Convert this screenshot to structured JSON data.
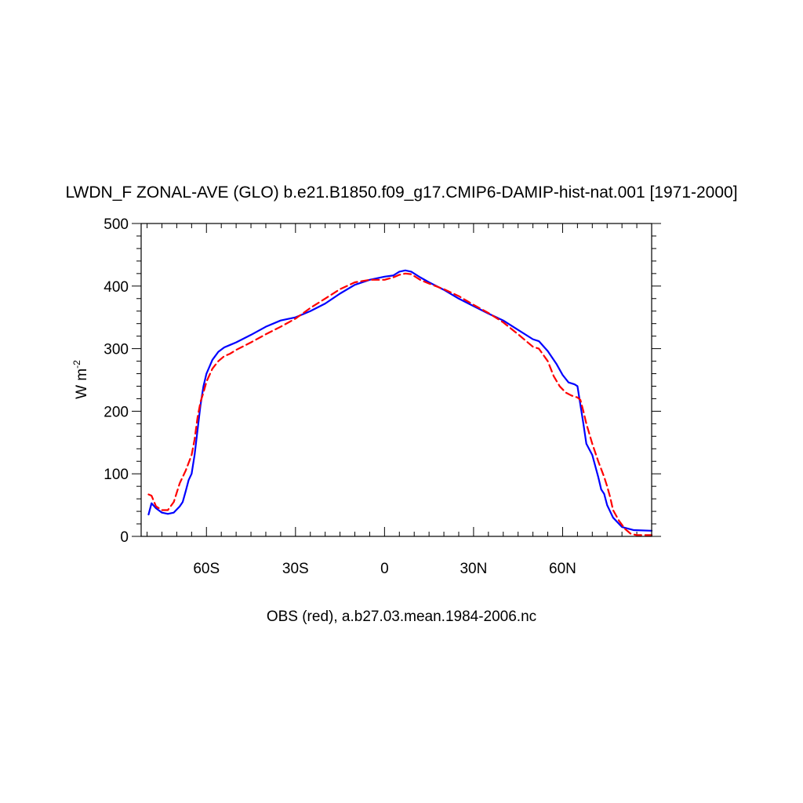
{
  "chart_data": {
    "type": "line",
    "title": "LWDN_F ZONAL-AVE (GLO) b.e21.B1850.f09_g17.CMIP6-DAMIP-hist-nat.001 [1971-2000]",
    "ylabel_base": "W m",
    "ylabel_sup": "-2",
    "xlabel": "OBS (red), a.b27.03.mean.1984-2006.nc",
    "xlim": [
      -82,
      90
    ],
    "ylim": [
      0,
      500
    ],
    "x_ticks": [
      {
        "value": -60,
        "label": "60S"
      },
      {
        "value": -30,
        "label": "30S"
      },
      {
        "value": 0,
        "label": "0"
      },
      {
        "value": 30,
        "label": "30N"
      },
      {
        "value": 60,
        "label": "60N"
      }
    ],
    "y_ticks": [
      {
        "value": 0,
        "label": "0"
      },
      {
        "value": 100,
        "label": "100"
      },
      {
        "value": 200,
        "label": "200"
      },
      {
        "value": 300,
        "label": "300"
      },
      {
        "value": 400,
        "label": "400"
      },
      {
        "value": 500,
        "label": "500"
      }
    ],
    "series": [
      {
        "color": "#0000ff",
        "dash": "solid",
        "points": [
          [
            -79.5,
            35
          ],
          [
            -78.5,
            53
          ],
          [
            -77,
            45
          ],
          [
            -75,
            38
          ],
          [
            -73,
            36
          ],
          [
            -71,
            38
          ],
          [
            -69,
            48
          ],
          [
            -68,
            55
          ],
          [
            -67,
            72
          ],
          [
            -66,
            90
          ],
          [
            -65,
            100
          ],
          [
            -64,
            130
          ],
          [
            -63,
            170
          ],
          [
            -62,
            210
          ],
          [
            -61,
            240
          ],
          [
            -60,
            260
          ],
          [
            -58,
            282
          ],
          [
            -56,
            295
          ],
          [
            -54,
            302
          ],
          [
            -52,
            306
          ],
          [
            -50,
            310
          ],
          [
            -45,
            322
          ],
          [
            -40,
            335
          ],
          [
            -35,
            345
          ],
          [
            -30,
            350
          ],
          [
            -25,
            360
          ],
          [
            -20,
            372
          ],
          [
            -15,
            388
          ],
          [
            -10,
            402
          ],
          [
            -5,
            410
          ],
          [
            0,
            415
          ],
          [
            3,
            417
          ],
          [
            5,
            423
          ],
          [
            7,
            425
          ],
          [
            9,
            423
          ],
          [
            12,
            414
          ],
          [
            15,
            406
          ],
          [
            20,
            394
          ],
          [
            25,
            380
          ],
          [
            30,
            368
          ],
          [
            35,
            356
          ],
          [
            40,
            345
          ],
          [
            45,
            330
          ],
          [
            50,
            315
          ],
          [
            52,
            312
          ],
          [
            55,
            296
          ],
          [
            58,
            275
          ],
          [
            60,
            258
          ],
          [
            62,
            246
          ],
          [
            64,
            243
          ],
          [
            65,
            240
          ],
          [
            66,
            210
          ],
          [
            67,
            180
          ],
          [
            68,
            148
          ],
          [
            70,
            130
          ],
          [
            72,
            95
          ],
          [
            73,
            75
          ],
          [
            74,
            68
          ],
          [
            75,
            50
          ],
          [
            77,
            30
          ],
          [
            80,
            15
          ],
          [
            84,
            10
          ],
          [
            90,
            9
          ]
        ]
      },
      {
        "color": "#ff0000",
        "dash": "dashed",
        "points": [
          [
            -79.5,
            67
          ],
          [
            -78.5,
            65
          ],
          [
            -77,
            48
          ],
          [
            -75,
            42
          ],
          [
            -73,
            42
          ],
          [
            -71,
            55
          ],
          [
            -69,
            85
          ],
          [
            -67,
            105
          ],
          [
            -65,
            130
          ],
          [
            -64,
            155
          ],
          [
            -63,
            190
          ],
          [
            -62,
            215
          ],
          [
            -61,
            230
          ],
          [
            -60,
            247
          ],
          [
            -58,
            268
          ],
          [
            -56,
            280
          ],
          [
            -54,
            288
          ],
          [
            -52,
            292
          ],
          [
            -50,
            298
          ],
          [
            -45,
            310
          ],
          [
            -40,
            323
          ],
          [
            -35,
            335
          ],
          [
            -30,
            348
          ],
          [
            -25,
            365
          ],
          [
            -20,
            380
          ],
          [
            -15,
            395
          ],
          [
            -10,
            406
          ],
          [
            -5,
            410
          ],
          [
            0,
            410
          ],
          [
            3,
            414
          ],
          [
            5,
            418
          ],
          [
            7,
            420
          ],
          [
            9,
            419
          ],
          [
            12,
            410
          ],
          [
            15,
            404
          ],
          [
            20,
            395
          ],
          [
            25,
            384
          ],
          [
            30,
            370
          ],
          [
            35,
            357
          ],
          [
            40,
            342
          ],
          [
            45,
            323
          ],
          [
            50,
            303
          ],
          [
            52,
            300
          ],
          [
            55,
            280
          ],
          [
            57,
            256
          ],
          [
            59,
            240
          ],
          [
            61,
            230
          ],
          [
            63,
            225
          ],
          [
            65,
            222
          ],
          [
            66,
            218
          ],
          [
            67,
            200
          ],
          [
            68,
            180
          ],
          [
            70,
            148
          ],
          [
            72,
            120
          ],
          [
            74,
            95
          ],
          [
            75,
            80
          ],
          [
            76,
            63
          ],
          [
            77,
            42
          ],
          [
            79,
            25
          ],
          [
            81,
            12
          ],
          [
            83,
            4
          ],
          [
            85,
            2
          ],
          [
            90,
            2
          ]
        ]
      }
    ]
  }
}
